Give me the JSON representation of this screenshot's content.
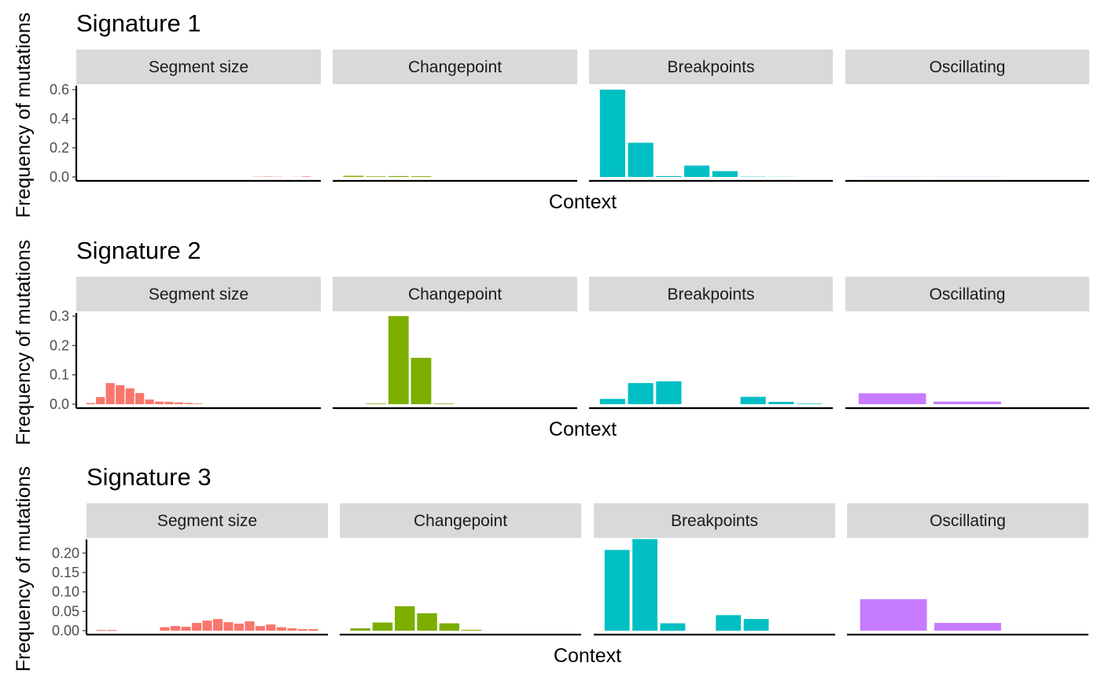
{
  "colors": {
    "Segment size": "#F8766D",
    "Changepoint": "#7CAE00",
    "Breakpoints": "#00BFC4",
    "Oscillating": "#C77CFF"
  },
  "chart_data": [
    {
      "type": "bar",
      "title": "Signature 1",
      "xlabel": "Context",
      "ylabel": "Frequency of mutations",
      "ylim": [
        0,
        0.6
      ],
      "yticks": [
        "0.0",
        "0.2",
        "0.4",
        "0.6"
      ],
      "ytick_values": [
        0,
        0.2,
        0.4,
        0.6
      ],
      "grid": false,
      "facets": [
        {
          "label": "Segment size",
          "values": [
            0,
            0,
            0,
            0,
            0,
            0,
            0,
            0,
            0,
            0,
            0,
            0,
            0,
            0,
            0,
            0,
            0,
            0.002,
            0.003,
            0.002,
            0,
            0.001,
            0.004
          ]
        },
        {
          "label": "Changepoint",
          "values": [
            0.008,
            0.004,
            0.006,
            0.005,
            0,
            0,
            0,
            0,
            0,
            0
          ]
        },
        {
          "label": "Breakpoints",
          "values": [
            0.6,
            0.235,
            0.006,
            0.078,
            0.04,
            0.002,
            0.001,
            0
          ]
        },
        {
          "label": "Oscillating",
          "values": [
            0.001,
            0.001,
            0
          ]
        }
      ]
    },
    {
      "type": "bar",
      "title": "Signature 2",
      "xlabel": "Context",
      "ylabel": "Frequency of mutations",
      "ylim": [
        0,
        0.3
      ],
      "yticks": [
        "0.0",
        "0.1",
        "0.2",
        "0.3"
      ],
      "ytick_values": [
        0,
        0.1,
        0.2,
        0.3
      ],
      "grid": false,
      "facets": [
        {
          "label": "Segment size",
          "values": [
            0.004,
            0.024,
            0.072,
            0.065,
            0.054,
            0.038,
            0.016,
            0.009,
            0.008,
            0.006,
            0.004,
            0.002,
            0,
            0,
            0,
            0,
            0,
            0,
            0,
            0,
            0,
            0,
            0
          ]
        },
        {
          "label": "Changepoint",
          "values": [
            0,
            0.002,
            0.3,
            0.158,
            0.002,
            0,
            0,
            0,
            0,
            0
          ]
        },
        {
          "label": "Breakpoints",
          "values": [
            0.018,
            0.072,
            0.078,
            0,
            0,
            0.025,
            0.008,
            0.002
          ]
        },
        {
          "label": "Oscillating",
          "values": [
            0.037,
            0.009,
            0
          ]
        }
      ]
    },
    {
      "type": "bar",
      "title": "Signature 3",
      "xlabel": "Context",
      "ylabel": "Frequency of mutations",
      "ylim": [
        0,
        0.235
      ],
      "yticks": [
        "0.00",
        "0.05",
        "0.10",
        "0.15",
        "0.20"
      ],
      "ytick_values": [
        0,
        0.05,
        0.1,
        0.15,
        0.2
      ],
      "grid": false,
      "facets": [
        {
          "label": "Segment size",
          "values": [
            0.002,
            0.002,
            0,
            0,
            0,
            0,
            0.009,
            0.012,
            0.01,
            0.02,
            0.026,
            0.03,
            0.022,
            0.018,
            0.024,
            0.012,
            0.016,
            0.009,
            0.006,
            0.004,
            0.004
          ]
        },
        {
          "label": "Changepoint",
          "values": [
            0.006,
            0.021,
            0.063,
            0.045,
            0.019,
            0.002,
            0,
            0,
            0,
            0
          ]
        },
        {
          "label": "Breakpoints",
          "values": [
            0.208,
            0.236,
            0.019,
            0,
            0.04,
            0.03,
            0,
            0
          ]
        },
        {
          "label": "Oscillating",
          "values": [
            0.081,
            0.02,
            0
          ]
        }
      ]
    }
  ]
}
